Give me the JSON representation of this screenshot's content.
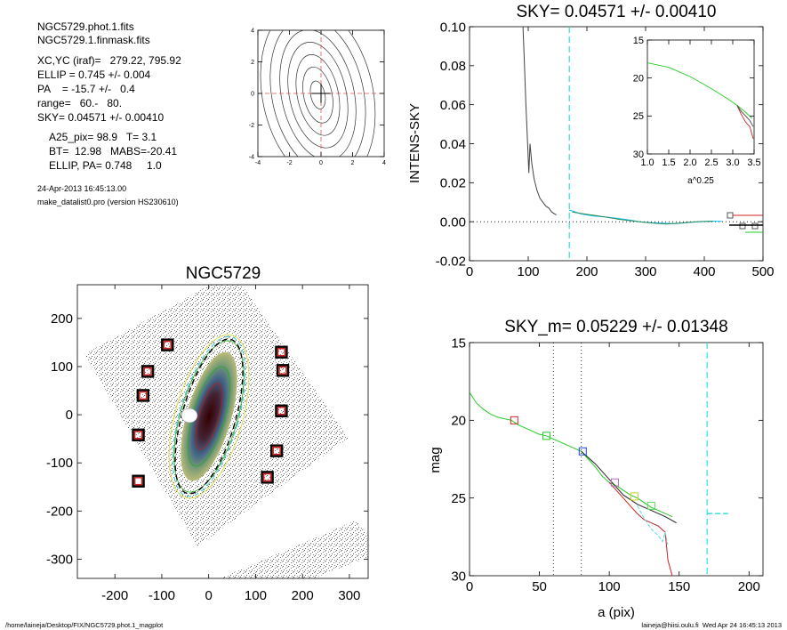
{
  "header": {
    "lines": [
      "NGC5729.phot.1.fits",
      "NGC5729.1.finmask.fits",
      "XC,YC (iraf)=   279.22, 795.92",
      "ELLIP = 0.745 +/- 0.004",
      "PA    = -15.7 +/-   0.4",
      "range=   60.-   80.",
      "SKY= 0.04571 +/- 0.00410",
      "A25_pix= 98.9   T= 3.1",
      "BT=  12.98   MABS=-20.41",
      "ELLIP, PA= 0.748     1.0"
    ],
    "date": "24-Apr-2013 16:45:13.00",
    "program": "make_datalist0.pro (version HS230610)"
  },
  "footer": {
    "path": "/home/laineja/Desktop/FIX/NGC5729.phot.1_magplot",
    "user_time": "laineja@hiisi.oulu.fi  Wed Apr 24 16:45:13 2013"
  },
  "chart_data": [
    {
      "id": "contour",
      "type": "line",
      "xlim": [
        -4,
        4
      ],
      "ylim": [
        -4,
        4
      ],
      "xticks": [
        "-4",
        "-2",
        "0",
        "2",
        "4"
      ],
      "yticks": [
        "4",
        "2",
        "0",
        "-2",
        "-4"
      ],
      "contours": [
        {
          "a": 0.45,
          "b": 0.9
        },
        {
          "a": 0.9,
          "b": 1.8
        },
        {
          "a": 1.3,
          "b": 2.6
        },
        {
          "a": 1.8,
          "b": 3.4
        },
        {
          "a": 2.3,
          "b": 4.2
        },
        {
          "a": 2.9,
          "b": 5.0
        },
        {
          "a": 3.5,
          "b": 5.8
        }
      ],
      "center": [
        -0.2,
        -0.1
      ]
    },
    {
      "id": "sky",
      "type": "line",
      "title": "SKY= 0.04571 +/- 0.00410",
      "ylabel": "INTENS-SKY",
      "xlim": [
        0,
        500
      ],
      "ylim": [
        -0.02,
        0.1
      ],
      "xticks": [
        "0",
        "100",
        "200",
        "300",
        "400",
        "500"
      ],
      "yticks": [
        "0.10",
        "0.08",
        "0.06",
        "0.04",
        "0.02",
        "0.00",
        "-0.02"
      ],
      "series": [
        {
          "color": "#444444",
          "x": [
            91,
            93,
            96,
            99,
            101,
            103,
            106,
            110,
            115,
            120,
            125,
            130,
            135,
            140,
            145,
            148
          ],
          "y": [
            0.1,
            0.085,
            0.06,
            0.04,
            0.025,
            0.04,
            0.03,
            0.022,
            0.016,
            0.012,
            0.01,
            0.008,
            0.007,
            0.005,
            0.004,
            0.0035
          ]
        },
        {
          "color": "#00bfff",
          "x": [
            170,
            190,
            210,
            230,
            250,
            270,
            290,
            310,
            330,
            350,
            370,
            390,
            410,
            430
          ],
          "y": [
            0.006,
            0.004,
            0.003,
            0.0025,
            0.0018,
            0.001,
            0.0,
            -0.0005,
            -0.0008,
            -0.001,
            -0.0005,
            0.0,
            0.0003,
            0.0002
          ]
        },
        {
          "color": "#2e8b57",
          "x": [
            175,
            195,
            215,
            235,
            255,
            275,
            295,
            315,
            335,
            355,
            375,
            395,
            415
          ],
          "y": [
            0.005,
            0.004,
            0.0032,
            0.0022,
            0.0012,
            0.0005,
            -0.0002,
            -0.0008,
            -0.0012,
            -0.0008,
            -0.0003,
            0.0001,
            0.0002
          ]
        }
      ],
      "sky_line_x": 170,
      "inset": {
        "xlabel": "a^0.25",
        "xlim": [
          1.0,
          3.5
        ],
        "ylim": [
          15,
          30
        ],
        "xticks": [
          "1.0",
          "1.5",
          "2.0",
          "2.5",
          "3.0",
          "3.5"
        ],
        "yticks": [
          "15",
          "20",
          "25",
          "30"
        ],
        "series": [
          {
            "color": "#22cc22",
            "x": [
              1.0,
              1.5,
              2.0,
              2.5,
              2.9,
              3.1,
              3.3,
              3.45
            ],
            "y": [
              18.0,
              18.6,
              19.8,
              21.4,
              22.8,
              23.6,
              24.5,
              25.3
            ]
          },
          {
            "color": "#cc2222",
            "x": [
              3.1,
              3.2,
              3.3,
              3.4,
              3.48
            ],
            "y": [
              23.6,
              24.8,
              25.8,
              26.4,
              28.0
            ]
          },
          {
            "color": "#444444",
            "x": [
              3.1,
              3.2,
              3.3,
              3.4,
              3.48
            ],
            "y": [
              23.6,
              24.4,
              25.0,
              25.6,
              26.4
            ]
          }
        ]
      }
    },
    {
      "id": "image",
      "type": "scatter",
      "title": "NGC5729",
      "xlim": [
        -280,
        340
      ],
      "ylim": [
        -340,
        270
      ],
      "xticks": [
        "-200",
        "-100",
        "0",
        "100",
        "200",
        "300"
      ],
      "yticks": [
        "200",
        "100",
        "0",
        "-100",
        "-200",
        "-300"
      ],
      "xtick_vals": [
        -200,
        -100,
        0,
        100,
        200,
        300
      ],
      "ytick_vals": [
        200,
        100,
        0,
        -100,
        -200,
        -300
      ],
      "markers": [
        [
          -88,
          145
        ],
        [
          -130,
          90
        ],
        [
          -140,
          40
        ],
        [
          -150,
          -42
        ],
        [
          -150,
          -138
        ],
        [
          155,
          130
        ],
        [
          158,
          92
        ],
        [
          155,
          8
        ],
        [
          145,
          -75
        ],
        [
          125,
          -130
        ]
      ]
    },
    {
      "id": "mag",
      "type": "line",
      "title": "SKY_m=  0.05229 +/- 0.01348",
      "xlabel": "a (pix)",
      "ylabel": "mag",
      "xlim": [
        0,
        210
      ],
      "ylim": [
        15,
        30
      ],
      "xticks": [
        "0",
        "50",
        "100",
        "150",
        "200"
      ],
      "yticks": [
        "15",
        "20",
        "25",
        "30"
      ],
      "vlines": [
        60,
        80
      ],
      "sky_line_x": 170,
      "sky_mark": {
        "x": [
          170,
          185
        ],
        "y": 26.0
      },
      "series": [
        {
          "color": "#22cc22",
          "x": [
            0,
            5,
            10,
            15,
            20,
            25,
            30,
            35,
            40,
            45,
            50,
            55,
            60,
            65,
            70,
            75,
            80,
            85,
            90,
            95,
            100,
            105,
            110,
            115,
            120,
            125,
            130,
            135,
            140,
            145
          ],
          "y": [
            18.2,
            18.9,
            19.3,
            19.6,
            19.8,
            19.9,
            20.0,
            20.3,
            20.5,
            20.7,
            20.9,
            21.0,
            21.2,
            21.4,
            21.6,
            21.8,
            22.0,
            22.5,
            23.0,
            23.6,
            24.0,
            24.2,
            24.5,
            24.8,
            25.0,
            25.3,
            25.6,
            25.8,
            26.0,
            26.2
          ]
        },
        {
          "color": "#cc2222",
          "x": [
            100,
            105,
            110,
            115,
            120,
            125,
            130,
            135,
            140,
            142,
            145
          ],
          "y": [
            24.0,
            24.5,
            25.0,
            25.5,
            26.0,
            26.4,
            26.6,
            26.8,
            27.2,
            29.0,
            30.0
          ]
        },
        {
          "color": "#222222",
          "x": [
            80,
            90,
            100,
            110,
            120,
            130,
            140,
            148
          ],
          "y": [
            22.0,
            22.8,
            23.8,
            24.8,
            25.4,
            25.8,
            26.2,
            26.6
          ]
        },
        {
          "color": "#55dddd",
          "x": [
            120,
            125,
            130,
            135,
            138,
            140,
            142
          ],
          "y": [
            25.5,
            26.3,
            27.0,
            27.4,
            27.8,
            27.2,
            28.0
          ]
        }
      ],
      "boxes": [
        {
          "x": 32,
          "y": 20.0,
          "color": "#cc2222"
        },
        {
          "x": 55,
          "y": 21.0,
          "color": "#22cc22"
        },
        {
          "x": 81,
          "y": 22.0,
          "color": "#2244cc"
        },
        {
          "x": 104,
          "y": 24.0,
          "color": "#bb66bb"
        },
        {
          "x": 118,
          "y": 24.9,
          "color": "#cccc22"
        },
        {
          "x": 130,
          "y": 25.5,
          "color": "#55dd55"
        }
      ]
    }
  ]
}
